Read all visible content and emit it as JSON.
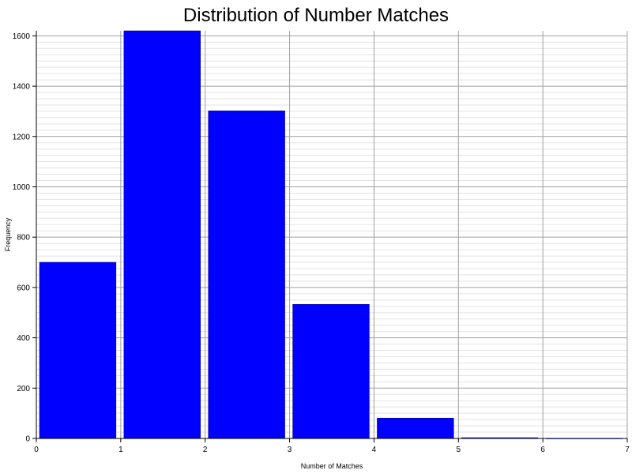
{
  "chart_data": {
    "type": "bar",
    "title": "Distribution of Number Matches",
    "xlabel": "Number of Matches",
    "ylabel": "Frequency",
    "bins": [
      {
        "x0": 0,
        "x1": 1,
        "value": 700
      },
      {
        "x0": 1,
        "x1": 2,
        "value": 1640
      },
      {
        "x0": 2,
        "x1": 3,
        "value": 1302
      },
      {
        "x0": 3,
        "x1": 4,
        "value": 533
      },
      {
        "x0": 4,
        "x1": 5,
        "value": 81
      },
      {
        "x0": 5,
        "x1": 6,
        "value": 4
      },
      {
        "x0": 6,
        "x1": 7,
        "value": 0
      }
    ],
    "xlim": [
      0,
      7
    ],
    "ylim": [
      0,
      1620
    ],
    "xticks": [
      "0",
      "1",
      "2",
      "3",
      "4",
      "5",
      "6",
      "7"
    ],
    "yticks": [
      "0",
      "200",
      "400",
      "600",
      "800",
      "1000",
      "1200",
      "1400",
      "1600"
    ],
    "bar_color": "#0000ff",
    "grid": true,
    "legend": "none"
  }
}
